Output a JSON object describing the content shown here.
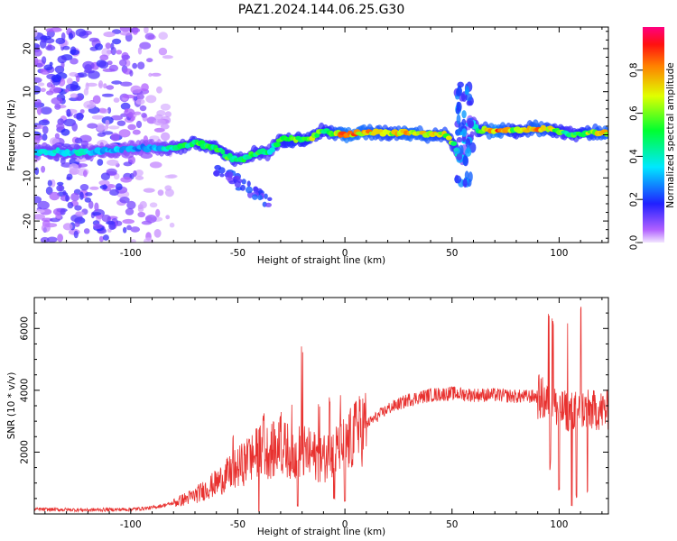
{
  "title": "PAZ1.2024.144.06.25.G30",
  "colors": {
    "snr_line": "#e8312f",
    "track_core": "#e02020",
    "background": "#ffffff"
  },
  "chart_data": [
    {
      "type": "heatmap",
      "xlabel": "Height of straight line (km)",
      "ylabel": "Frequency (Hz)",
      "xlim": [
        -145,
        123
      ],
      "ylim": [
        -25,
        25
      ],
      "x_ticks": [
        -100,
        -50,
        0,
        50,
        100
      ],
      "y_ticks": [
        -20,
        -10,
        0,
        10,
        20
      ],
      "colorbar": {
        "label": "Normalized spectral amplitude",
        "range": [
          0,
          1
        ],
        "ticks": [
          "0.0",
          "0.2",
          "0.4",
          "0.6",
          "0.8"
        ],
        "colormap": "gist_rainbow_r"
      },
      "frequency_track": [
        {
          "x": -145,
          "f": -4,
          "a": 0.35
        },
        {
          "x": -130,
          "f": -4,
          "a": 0.4
        },
        {
          "x": -115,
          "f": -4,
          "a": 0.35
        },
        {
          "x": -100,
          "f": -3,
          "a": 0.3
        },
        {
          "x": -90,
          "f": -3,
          "a": 0.3
        },
        {
          "x": -80,
          "f": -3,
          "a": 0.45
        },
        {
          "x": -70,
          "f": -2,
          "a": 0.55
        },
        {
          "x": -60,
          "f": -3,
          "a": 0.55
        },
        {
          "x": -55,
          "f": -5,
          "a": 0.55
        },
        {
          "x": -50,
          "f": -6,
          "a": 0.5
        },
        {
          "x": -45,
          "f": -5,
          "a": 0.5
        },
        {
          "x": -40,
          "f": -4,
          "a": 0.55
        },
        {
          "x": -35,
          "f": -4,
          "a": 0.45
        },
        {
          "x": -30,
          "f": -1,
          "a": 0.55
        },
        {
          "x": -25,
          "f": -1,
          "a": 0.65
        },
        {
          "x": -20,
          "f": -1,
          "a": 0.6
        },
        {
          "x": -15,
          "f": -0.5,
          "a": 0.65
        },
        {
          "x": -10,
          "f": 1,
          "a": 0.55
        },
        {
          "x": -5,
          "f": 0.5,
          "a": 0.7
        },
        {
          "x": 0,
          "f": 0,
          "a": 0.85
        },
        {
          "x": 10,
          "f": 0.5,
          "a": 0.8
        },
        {
          "x": 20,
          "f": 0.5,
          "a": 0.7
        },
        {
          "x": 30,
          "f": 0.5,
          "a": 0.8
        },
        {
          "x": 40,
          "f": 0,
          "a": 0.75
        },
        {
          "x": 48,
          "f": 0,
          "a": 0.7
        },
        {
          "x": 55,
          "f": -6,
          "a": 0.4
        },
        {
          "x": 58,
          "f": 4,
          "a": 0.3
        },
        {
          "x": 62,
          "f": 1,
          "a": 0.55
        },
        {
          "x": 70,
          "f": 1,
          "a": 0.9
        },
        {
          "x": 80,
          "f": 1,
          "a": 0.6
        },
        {
          "x": 90,
          "f": 1.5,
          "a": 0.8
        },
        {
          "x": 100,
          "f": 1,
          "a": 0.6
        },
        {
          "x": 105,
          "f": 0,
          "a": 0.5
        },
        {
          "x": 115,
          "f": 0.5,
          "a": 0.7
        },
        {
          "x": 123,
          "f": 0.5,
          "a": 0.8
        }
      ],
      "noise_region_x": [
        -145,
        -80
      ]
    },
    {
      "type": "line",
      "xlabel": "Height of straight line (km)",
      "ylabel": "SNR (10 * v/v)",
      "xlim": [
        -145,
        123
      ],
      "ylim": [
        0,
        7000
      ],
      "x_ticks": [
        -100,
        -50,
        0,
        50,
        100
      ],
      "y_ticks": [
        2000,
        4000,
        6000
      ],
      "series": [
        {
          "trend": [
            {
              "x": -145,
              "y": 150
            },
            {
              "x": -120,
              "y": 130
            },
            {
              "x": -100,
              "y": 150
            },
            {
              "x": -90,
              "y": 200
            },
            {
              "x": -80,
              "y": 350
            },
            {
              "x": -70,
              "y": 600
            },
            {
              "x": -60,
              "y": 1000
            },
            {
              "x": -50,
              "y": 1500
            },
            {
              "x": -40,
              "y": 2000
            },
            {
              "x": -30,
              "y": 2100
            },
            {
              "x": -20,
              "y": 2000
            },
            {
              "x": -10,
              "y": 1800
            },
            {
              "x": 0,
              "y": 2200
            },
            {
              "x": 10,
              "y": 2900
            },
            {
              "x": 20,
              "y": 3400
            },
            {
              "x": 30,
              "y": 3700
            },
            {
              "x": 40,
              "y": 3850
            },
            {
              "x": 50,
              "y": 3900
            },
            {
              "x": 60,
              "y": 3850
            },
            {
              "x": 70,
              "y": 3850
            },
            {
              "x": 80,
              "y": 3800
            },
            {
              "x": 90,
              "y": 3800
            },
            {
              "x": 95,
              "y": 3600
            },
            {
              "x": 100,
              "y": 3400
            },
            {
              "x": 105,
              "y": 3300
            },
            {
              "x": 110,
              "y": 3400
            },
            {
              "x": 115,
              "y": 3350
            },
            {
              "x": 123,
              "y": 3350
            }
          ],
          "spikes": [
            {
              "x": -52,
              "y": 2600
            },
            {
              "x": -45,
              "y": 2500
            },
            {
              "x": -38,
              "y": 3300
            },
            {
              "x": -30,
              "y": 3400
            },
            {
              "x": -25,
              "y": 3700
            },
            {
              "x": -20,
              "y": 5600
            },
            {
              "x": -12,
              "y": 3700
            },
            {
              "x": -7,
              "y": 4000
            },
            {
              "x": -2,
              "y": 4200
            },
            {
              "x": 5,
              "y": 3900
            },
            {
              "x": 95,
              "y": 6900
            },
            {
              "x": 97,
              "y": 6600
            },
            {
              "x": 104,
              "y": 6300
            },
            {
              "x": 108,
              "y": 6100
            },
            {
              "x": 110,
              "y": 7000
            }
          ],
          "dips": [
            {
              "x": -40,
              "y": 100
            },
            {
              "x": -22,
              "y": 300
            },
            {
              "x": -5,
              "y": 500
            },
            {
              "x": 0,
              "y": 400
            },
            {
              "x": 96,
              "y": 1700
            },
            {
              "x": 100,
              "y": 800
            },
            {
              "x": 106,
              "y": 300
            },
            {
              "x": 108,
              "y": 600
            },
            {
              "x": 113,
              "y": 700
            }
          ]
        }
      ]
    }
  ]
}
